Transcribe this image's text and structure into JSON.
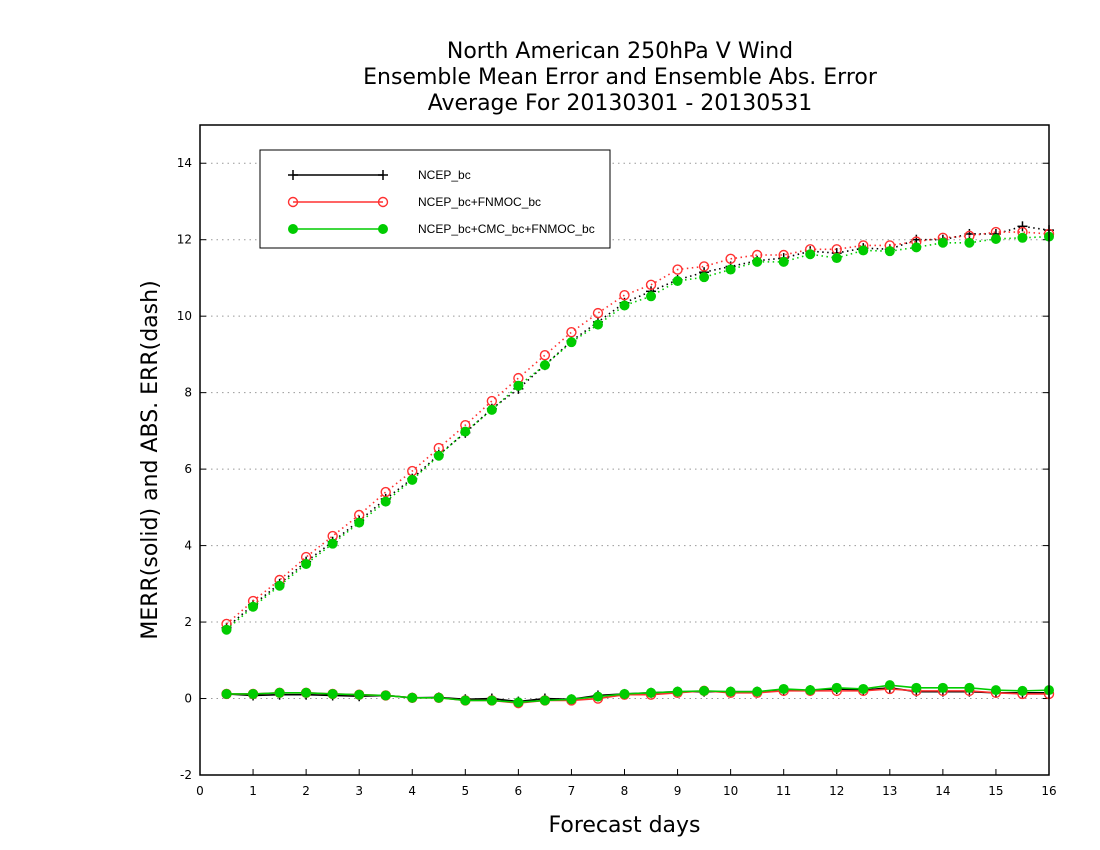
{
  "chart_data": {
    "type": "line",
    "title": [
      "North American 250hPa V Wind",
      "Ensemble Mean Error and Ensemble Abs. Error",
      "Average For 20130301 - 20130531"
    ],
    "xlabel": "Forecast days",
    "ylabel": "MERR(solid) and ABS. ERR(dash)",
    "xlim": [
      0,
      16
    ],
    "ylim": [
      -2,
      15
    ],
    "xticks": [
      0,
      1,
      2,
      3,
      4,
      5,
      6,
      7,
      8,
      9,
      10,
      11,
      12,
      13,
      14,
      15,
      16
    ],
    "yticks": [
      -2,
      0,
      2,
      4,
      6,
      8,
      10,
      12,
      14
    ],
    "grid": "horizontal dotted",
    "legend_position": "top-left",
    "x": [
      0.5,
      1,
      1.5,
      2,
      2.5,
      3,
      3.5,
      4,
      4.5,
      5,
      5.5,
      6,
      6.5,
      7,
      7.5,
      8,
      8.5,
      9,
      9.5,
      10,
      10.5,
      11,
      11.5,
      12,
      12.5,
      13,
      13.5,
      14,
      14.5,
      15,
      15.5,
      16
    ],
    "series": [
      {
        "name": "NCEP_bc",
        "color": "#000000",
        "marker": "plus",
        "merr": [
          0.12,
          0.08,
          0.1,
          0.1,
          0.08,
          0.06,
          0.08,
          0.02,
          0.03,
          -0.02,
          0.0,
          -0.08,
          0.0,
          -0.02,
          0.08,
          0.12,
          0.15,
          0.18,
          0.18,
          0.18,
          0.18,
          0.2,
          0.22,
          0.25,
          0.22,
          0.28,
          0.18,
          0.18,
          0.18,
          0.15,
          0.15,
          0.15
        ],
        "abs_err": [
          1.85,
          2.45,
          3.0,
          3.58,
          4.1,
          4.65,
          5.22,
          5.75,
          6.38,
          6.95,
          7.58,
          8.1,
          8.72,
          9.35,
          9.85,
          10.35,
          10.65,
          10.95,
          11.15,
          11.3,
          11.45,
          11.52,
          11.7,
          11.65,
          11.78,
          11.75,
          12.0,
          12.0,
          12.15,
          12.15,
          12.35,
          12.25
        ]
      },
      {
        "name": "NCEP_bc+FNMOC_bc",
        "color": "#ff3030",
        "marker": "open-circle",
        "merr": [
          0.12,
          0.12,
          0.15,
          0.15,
          0.12,
          0.1,
          0.08,
          0.02,
          0.02,
          -0.05,
          -0.05,
          -0.12,
          -0.05,
          -0.05,
          0.0,
          0.1,
          0.1,
          0.15,
          0.2,
          0.15,
          0.15,
          0.2,
          0.2,
          0.2,
          0.2,
          0.25,
          0.2,
          0.2,
          0.2,
          0.15,
          0.12,
          0.12
        ],
        "abs_err": [
          1.95,
          2.55,
          3.1,
          3.7,
          4.25,
          4.8,
          5.4,
          5.95,
          6.55,
          7.15,
          7.78,
          8.38,
          8.98,
          9.58,
          10.08,
          10.55,
          10.82,
          11.22,
          11.3,
          11.5,
          11.6,
          11.6,
          11.75,
          11.75,
          11.85,
          11.85,
          11.95,
          12.05,
          12.1,
          12.2,
          12.2,
          12.15
        ]
      },
      {
        "name": "NCEP_bc+CMC_bc+FNMOC_bc",
        "color": "#00cc00",
        "marker": "filled-circle",
        "merr": [
          0.12,
          0.12,
          0.15,
          0.15,
          0.12,
          0.1,
          0.08,
          0.02,
          0.02,
          -0.05,
          -0.05,
          -0.1,
          -0.05,
          -0.02,
          0.05,
          0.12,
          0.15,
          0.18,
          0.2,
          0.18,
          0.18,
          0.25,
          0.22,
          0.28,
          0.25,
          0.35,
          0.28,
          0.28,
          0.28,
          0.22,
          0.2,
          0.22
        ],
        "abs_err": [
          1.8,
          2.4,
          2.95,
          3.52,
          4.05,
          4.6,
          5.15,
          5.72,
          6.35,
          6.98,
          7.55,
          8.18,
          8.72,
          9.32,
          9.78,
          10.28,
          10.52,
          10.92,
          11.02,
          11.22,
          11.42,
          11.42,
          11.62,
          11.52,
          11.72,
          11.7,
          11.8,
          11.92,
          11.92,
          12.02,
          12.05,
          12.08
        ]
      }
    ]
  }
}
